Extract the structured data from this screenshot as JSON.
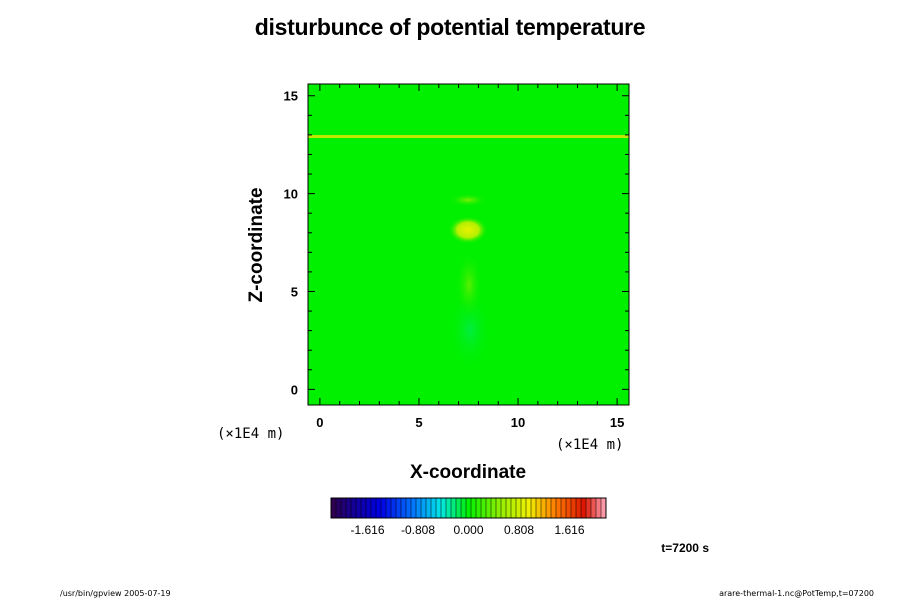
{
  "chart_data": {
    "type": "heatmap",
    "title": "disturbunce of potential temperature",
    "xlabel": "X-coordinate",
    "ylabel": "Z-coordinate",
    "x_unit": "(×1E4 m)",
    "z_unit": "(×1E4 m)",
    "x_ticks": [
      0,
      5,
      10,
      15
    ],
    "y_ticks": [
      0,
      5,
      10,
      15
    ],
    "xlim": [
      -0.6,
      15.6
    ],
    "ylim": [
      -0.8,
      15.6
    ],
    "colorbar": {
      "ticks": [
        "-1.616",
        "-0.808",
        "0.000",
        "0.808",
        "1.616"
      ],
      "range": [
        -2.2,
        2.2
      ]
    },
    "background_value": 0.0,
    "features": [
      {
        "name": "horizontal band",
        "z": 12.95,
        "value": 0.55
      },
      {
        "name": "thermal cap",
        "x": 7.4,
        "z": 8.3,
        "value": 0.75
      },
      {
        "name": "upper cap",
        "x": 7.4,
        "z": 9.8,
        "value": 0.35
      },
      {
        "name": "plume stem",
        "x": 7.4,
        "z": 6.0,
        "value": 0.25
      },
      {
        "name": "lower plume",
        "x": 7.4,
        "z": 3.0,
        "value": -0.2
      }
    ],
    "time_label": "t=7200 s"
  },
  "footer": {
    "left": "/usr/bin/gpview 2005-07-19",
    "right": "arare-thermal-1.nc@PotTemp,t=07200"
  }
}
